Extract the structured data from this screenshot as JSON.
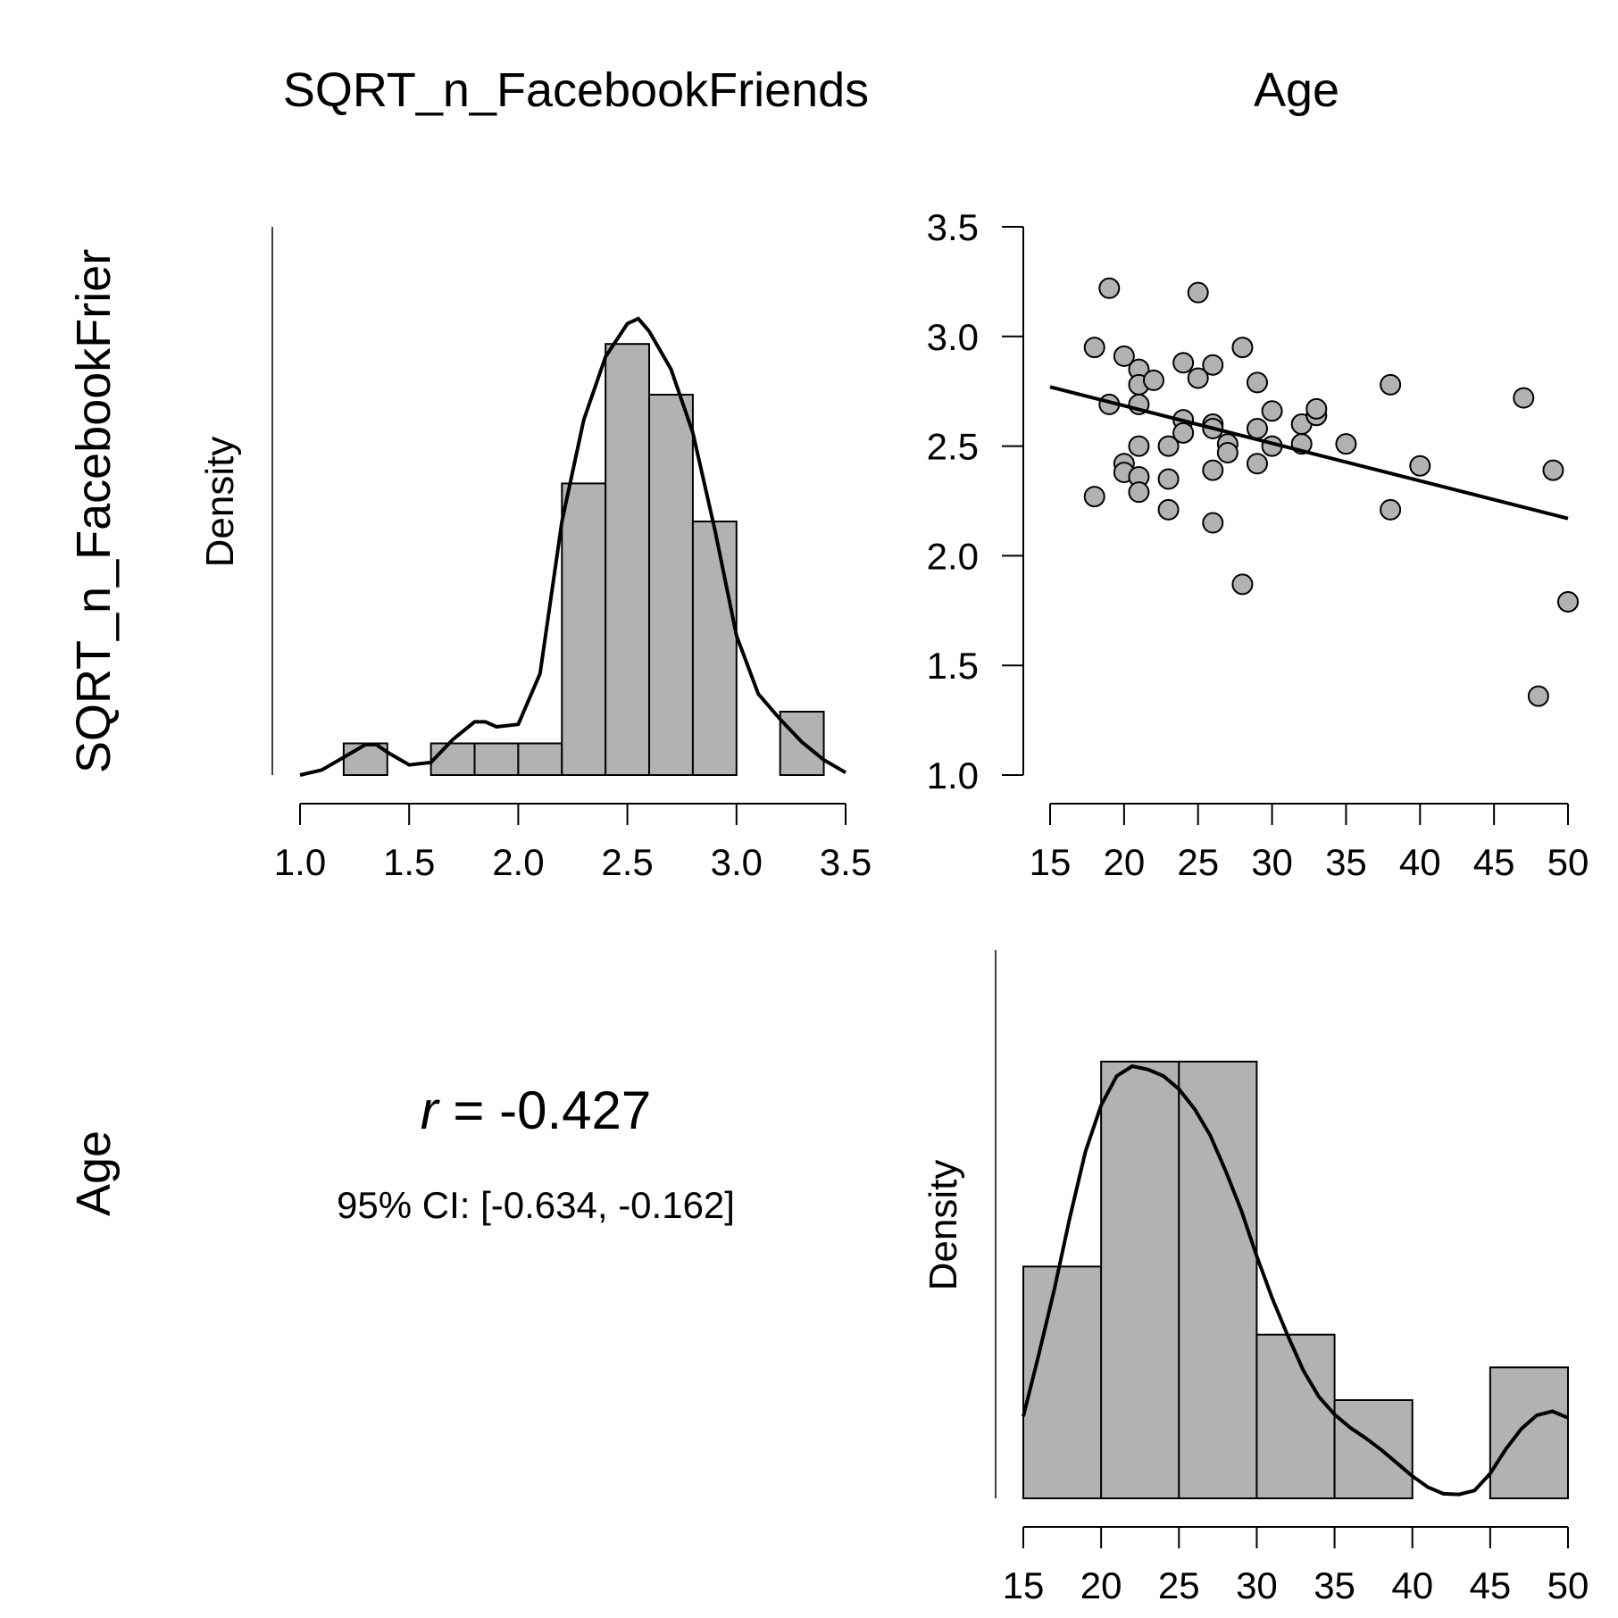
{
  "column_titles": [
    "SQRT_n_FacebookFriends",
    "Age"
  ],
  "row_labels": [
    "SQRT_n_FacebookFrier",
    "Age"
  ],
  "correlation": {
    "r_symbol": "r",
    "r_text": " = -0.427",
    "ci_text": "95% CI: [-0.634, -0.162]"
  },
  "chart_data": [
    {
      "type": "bar",
      "panel": "histogram",
      "variable": "SQRT_n_FacebookFriends",
      "ylabel": "Density",
      "xlim": [
        1.0,
        3.5
      ],
      "xticks": [
        "1.0",
        "1.5",
        "2.0",
        "2.5",
        "3.0",
        "3.5"
      ],
      "bins": [
        {
          "x0": 1.2,
          "x1": 1.4,
          "density": 0.125
        },
        {
          "x0": 1.4,
          "x1": 1.6,
          "density": 0.0
        },
        {
          "x0": 1.6,
          "x1": 1.8,
          "density": 0.125
        },
        {
          "x0": 1.8,
          "x1": 2.0,
          "density": 0.125
        },
        {
          "x0": 2.0,
          "x1": 2.2,
          "density": 0.125
        },
        {
          "x0": 2.2,
          "x1": 2.4,
          "density": 1.15
        },
        {
          "x0": 2.4,
          "x1": 2.6,
          "density": 1.7
        },
        {
          "x0": 2.6,
          "x1": 2.8,
          "density": 1.5
        },
        {
          "x0": 2.8,
          "x1": 3.0,
          "density": 1.0
        },
        {
          "x0": 3.0,
          "x1": 3.2,
          "density": 0.0
        },
        {
          "x0": 3.2,
          "x1": 3.4,
          "density": 0.25
        }
      ],
      "density_curve": {
        "x": [
          1.0,
          1.1,
          1.2,
          1.3,
          1.35,
          1.4,
          1.5,
          1.6,
          1.7,
          1.8,
          1.85,
          1.9,
          2.0,
          2.1,
          2.2,
          2.3,
          2.4,
          2.5,
          2.55,
          2.6,
          2.7,
          2.8,
          2.9,
          3.0,
          3.1,
          3.2,
          3.3,
          3.4,
          3.5
        ],
        "y": [
          0.0,
          0.02,
          0.07,
          0.12,
          0.12,
          0.09,
          0.04,
          0.05,
          0.14,
          0.21,
          0.21,
          0.19,
          0.2,
          0.4,
          1.0,
          1.4,
          1.65,
          1.78,
          1.8,
          1.75,
          1.6,
          1.35,
          0.97,
          0.55,
          0.32,
          0.22,
          0.13,
          0.06,
          0.01
        ]
      },
      "ylim": [
        0,
        2.0
      ]
    },
    {
      "type": "scatter",
      "panel": "scatter",
      "xlim": [
        15,
        50
      ],
      "ylim": [
        1.0,
        3.5
      ],
      "xticks": [
        "15",
        "20",
        "25",
        "30",
        "35",
        "40",
        "45",
        "50"
      ],
      "yticks": [
        "1.0",
        "1.5",
        "2.0",
        "2.5",
        "3.0",
        "3.5"
      ],
      "points": [
        [
          18,
          2.95
        ],
        [
          18,
          2.27
        ],
        [
          19,
          3.22
        ],
        [
          19,
          2.69
        ],
        [
          20,
          2.91
        ],
        [
          20,
          2.42
        ],
        [
          20,
          2.38
        ],
        [
          21,
          2.85
        ],
        [
          21,
          2.78
        ],
        [
          21,
          2.69
        ],
        [
          21,
          2.5
        ],
        [
          21,
          2.36
        ],
        [
          21,
          2.29
        ],
        [
          22,
          2.8
        ],
        [
          23,
          2.5
        ],
        [
          23,
          2.35
        ],
        [
          23,
          2.21
        ],
        [
          24,
          2.88
        ],
        [
          24,
          2.62
        ],
        [
          24,
          2.56
        ],
        [
          25,
          3.2
        ],
        [
          25,
          2.81
        ],
        [
          26,
          2.87
        ],
        [
          26,
          2.6
        ],
        [
          26,
          2.58
        ],
        [
          26,
          2.39
        ],
        [
          26,
          2.15
        ],
        [
          27,
          2.51
        ],
        [
          27,
          2.47
        ],
        [
          28,
          2.95
        ],
        [
          28,
          1.87
        ],
        [
          29,
          2.79
        ],
        [
          29,
          2.58
        ],
        [
          29,
          2.42
        ],
        [
          30,
          2.66
        ],
        [
          30,
          2.5
        ],
        [
          32,
          2.6
        ],
        [
          32,
          2.51
        ],
        [
          33,
          2.64
        ],
        [
          33,
          2.67
        ],
        [
          35,
          2.51
        ],
        [
          38,
          2.78
        ],
        [
          38,
          2.21
        ],
        [
          40,
          2.41
        ],
        [
          47,
          2.72
        ],
        [
          48,
          1.36
        ],
        [
          49,
          2.39
        ],
        [
          50,
          1.79
        ]
      ],
      "regression_line": {
        "x": [
          15,
          50
        ],
        "y": [
          2.77,
          2.17
        ]
      }
    },
    {
      "type": "bar",
      "panel": "histogram",
      "variable": "Age",
      "ylabel": "Density",
      "xlim": [
        15,
        50
      ],
      "xticks": [
        "15",
        "20",
        "25",
        "30",
        "35",
        "40",
        "45",
        "50"
      ],
      "bins": [
        {
          "x0": 15,
          "x1": 20,
          "density": 0.0354
        },
        {
          "x0": 20,
          "x1": 25,
          "density": 0.0667
        },
        {
          "x0": 25,
          "x1": 30,
          "density": 0.0667
        },
        {
          "x0": 30,
          "x1": 35,
          "density": 0.025
        },
        {
          "x0": 35,
          "x1": 40,
          "density": 0.015
        },
        {
          "x0": 40,
          "x1": 45,
          "density": 0.0
        },
        {
          "x0": 45,
          "x1": 50,
          "density": 0.02
        }
      ],
      "density_curve": {
        "x": [
          15,
          16,
          17,
          18,
          19,
          20,
          21,
          22,
          23,
          24,
          25,
          26,
          27,
          28,
          29,
          30,
          31,
          32,
          33,
          34,
          35,
          36,
          37,
          38,
          39,
          40,
          41,
          42,
          43,
          44,
          45,
          46,
          47,
          48,
          49,
          50
        ],
        "y": [
          0.0125,
          0.022,
          0.032,
          0.043,
          0.053,
          0.06,
          0.0645,
          0.066,
          0.0655,
          0.0645,
          0.0625,
          0.0595,
          0.0555,
          0.05,
          0.044,
          0.037,
          0.0305,
          0.0248,
          0.0195,
          0.0155,
          0.0128,
          0.0108,
          0.0092,
          0.0074,
          0.0054,
          0.0034,
          0.0017,
          0.0007,
          0.0006,
          0.0012,
          0.0038,
          0.0075,
          0.0106,
          0.0127,
          0.0133,
          0.0123
        ]
      },
      "ylim": [
        0,
        0.072
      ]
    }
  ]
}
